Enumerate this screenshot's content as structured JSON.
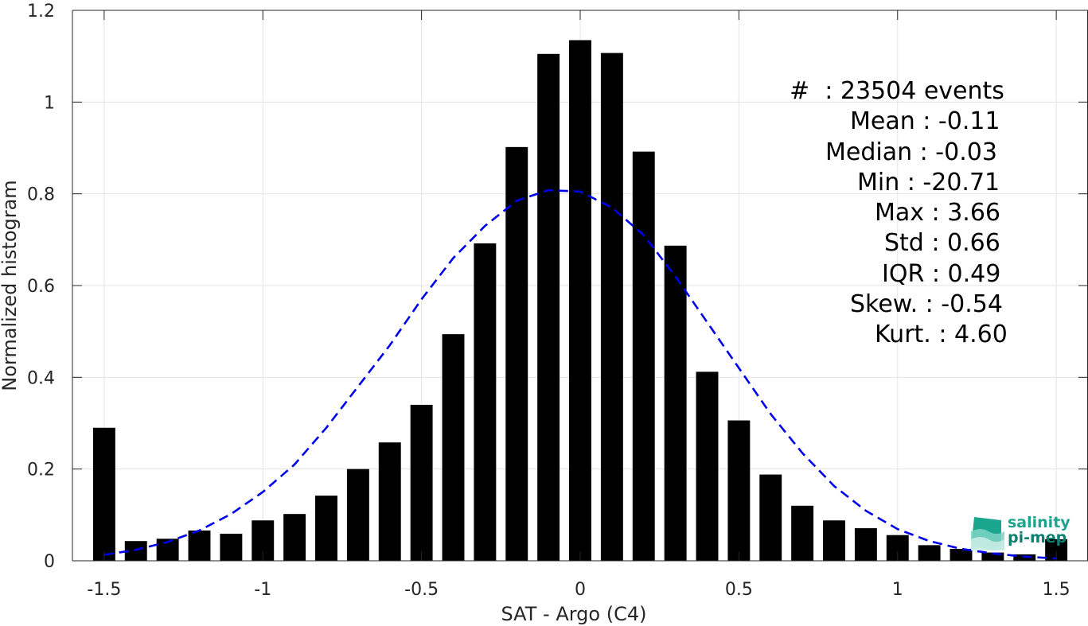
{
  "chart_data": {
    "type": "bar",
    "xlabel": "SAT - Argo (C4)",
    "ylabel": "Normalized histogram",
    "xlim": [
      -1.6,
      1.6
    ],
    "ylim": [
      0,
      1.2
    ],
    "xticks": [
      -1.5,
      -1,
      -0.5,
      0,
      0.5,
      1,
      1.5
    ],
    "xtick_labels": [
      "-1.5",
      "-1",
      "-0.5",
      "0",
      "0.5",
      "1",
      "1.5"
    ],
    "yticks": [
      0,
      0.2,
      0.4,
      0.6,
      0.8,
      1,
      1.2
    ],
    "ytick_labels": [
      "0",
      "0.2",
      "0.4",
      "0.6",
      "0.8",
      "1",
      "1.2"
    ],
    "grid": true,
    "bin_width": 0.1,
    "bar_color": "#000000",
    "fit_color": "#0000ee",
    "series": [
      {
        "type": "bar",
        "x": [
          -1.5,
          -1.4,
          -1.3,
          -1.2,
          -1.1,
          -1.0,
          -0.9,
          -0.8,
          -0.7,
          -0.6,
          -0.5,
          -0.4,
          -0.3,
          -0.2,
          -0.1,
          0.0,
          0.1,
          0.2,
          0.3,
          0.4,
          0.5,
          0.6,
          0.7,
          0.8,
          0.9,
          1.0,
          1.1,
          1.2,
          1.3,
          1.4,
          1.5
        ],
        "values": [
          0.29,
          0.043,
          0.048,
          0.066,
          0.059,
          0.088,
          0.102,
          0.142,
          0.2,
          0.258,
          0.34,
          0.494,
          0.692,
          0.902,
          1.105,
          1.135,
          1.107,
          0.892,
          0.687,
          0.412,
          0.306,
          0.188,
          0.12,
          0.088,
          0.071,
          0.056,
          0.034,
          0.026,
          0.018,
          0.014,
          0.047
        ]
      },
      {
        "type": "line",
        "style": "dashed",
        "x": [
          -1.5,
          -1.4,
          -1.3,
          -1.2,
          -1.1,
          -1.0,
          -0.9,
          -0.8,
          -0.7,
          -0.6,
          -0.5,
          -0.4,
          -0.3,
          -0.2,
          -0.1,
          0.0,
          0.1,
          0.2,
          0.3,
          0.4,
          0.5,
          0.6,
          0.7,
          0.8,
          0.9,
          1.0,
          1.1,
          1.2,
          1.3,
          1.4,
          1.5
        ],
        "values": [
          0.013,
          0.024,
          0.041,
          0.066,
          0.102,
          0.15,
          0.21,
          0.29,
          0.38,
          0.47,
          0.57,
          0.66,
          0.73,
          0.785,
          0.808,
          0.805,
          0.77,
          0.71,
          0.62,
          0.52,
          0.42,
          0.32,
          0.235,
          0.163,
          0.109,
          0.069,
          0.043,
          0.026,
          0.016,
          0.009,
          0.005
        ]
      }
    ],
    "annotations": [
      "#  : 23504 events",
      "Mean : -0.11",
      "Median : -0.03",
      "Min : -20.71",
      "Max : 3.66",
      "Std : 0.66",
      "IQR : 0.49",
      "Skew. : -0.54",
      "Kurt. : 4.60"
    ]
  },
  "logo": {
    "line1": "salinity",
    "line2": "pi-mep"
  }
}
